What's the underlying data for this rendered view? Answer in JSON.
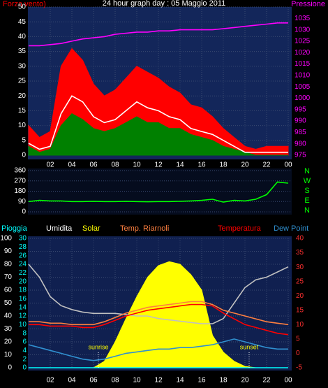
{
  "chart_data": [
    {
      "type": "line",
      "title": "24 hour graph day : 05 Maggio 2011",
      "ylabel": "Forza vento)",
      "y2label": "Pressione",
      "x": [
        0,
        1,
        2,
        3,
        4,
        5,
        6,
        7,
        8,
        9,
        10,
        11,
        12,
        13,
        14,
        15,
        16,
        17,
        18,
        19,
        20,
        21,
        22,
        23,
        24
      ],
      "xlim": [
        0,
        24
      ],
      "xticks": [
        {
          "value": 2,
          "label": "02"
        },
        {
          "value": 4,
          "label": "04"
        },
        {
          "value": 6,
          "label": "06"
        },
        {
          "value": 8,
          "label": "08"
        },
        10,
        12,
        14,
        16,
        18,
        20,
        22,
        {
          "value": 24,
          "label": "00"
        }
      ],
      "ylim": [
        0,
        50
      ],
      "yticks": [
        0,
        5,
        10,
        15,
        20,
        25,
        30,
        35,
        40,
        45,
        50
      ],
      "y2lim": [
        975,
        1040
      ],
      "y2ticks": [
        975,
        980,
        985,
        990,
        995,
        1000,
        1005,
        1010,
        1015,
        1020,
        1025,
        1030,
        1035
      ],
      "grid": true,
      "series": [
        {
          "color": "#ff0000",
          "fill": true,
          "values": [
            10,
            6,
            8,
            30,
            36,
            32,
            24,
            20,
            22,
            26,
            30,
            28,
            26,
            23,
            21,
            17,
            16,
            13,
            9,
            6,
            3,
            2,
            3,
            3,
            3
          ]
        },
        {
          "color": "#008000",
          "fill": true,
          "values": [
            3,
            1,
            2,
            10,
            14,
            12,
            9,
            8,
            9,
            11,
            13,
            11,
            11,
            9,
            9,
            7,
            6,
            5,
            3,
            2,
            1,
            0,
            0,
            0,
            0
          ]
        },
        {
          "color": "#ffffff",
          "fill": false,
          "values": [
            4,
            2,
            3,
            14,
            20,
            18,
            13,
            11,
            12,
            15,
            18,
            16,
            15,
            13,
            12,
            9,
            8,
            7,
            5,
            3,
            1,
            1,
            1,
            1,
            1
          ]
        },
        {
          "color": "#ff00ff",
          "fill": false,
          "axis": "y2",
          "values": [
            1023,
            1023,
            1023.5,
            1024,
            1025,
            1026,
            1026.5,
            1027,
            1028,
            1028.5,
            1029,
            1029,
            1029.5,
            1029.5,
            1030,
            1030,
            1030,
            1030,
            1030.5,
            1031,
            1031.5,
            1032,
            1032.5,
            1033,
            1033
          ]
        }
      ]
    },
    {
      "type": "line",
      "direction_labels": [
        "N",
        "W",
        "S",
        "E",
        "N"
      ],
      "x": [
        0,
        1,
        2,
        3,
        4,
        5,
        6,
        7,
        8,
        9,
        10,
        11,
        12,
        13,
        14,
        15,
        16,
        17,
        18,
        19,
        20,
        21,
        22,
        23,
        24
      ],
      "xlim": [
        0,
        24
      ],
      "ylim": [
        0,
        360
      ],
      "yticks": [
        0,
        90,
        180,
        270,
        360
      ],
      "grid": true,
      "series": [
        {
          "color": "#00ff00",
          "fill": false,
          "values": [
            90,
            100,
            95,
            95,
            90,
            90,
            92,
            90,
            90,
            92,
            90,
            88,
            90,
            90,
            92,
            95,
            100,
            110,
            85,
            100,
            95,
            110,
            150,
            260,
            250
          ]
        }
      ]
    },
    {
      "type": "line",
      "annotations": [
        "sunrise",
        "sunset"
      ],
      "x": [
        0,
        1,
        2,
        3,
        4,
        5,
        6,
        7,
        8,
        9,
        10,
        11,
        12,
        13,
        14,
        15,
        16,
        17,
        18,
        19,
        20,
        21,
        22,
        23,
        24
      ],
      "xlim": [
        0,
        24
      ],
      "xticks": [
        {
          "value": 2,
          "label": "02"
        },
        {
          "value": 4,
          "label": "04"
        },
        {
          "value": 6,
          "label": "06"
        },
        {
          "value": 8,
          "label": "08"
        },
        10,
        12,
        14,
        16,
        18,
        20,
        22,
        {
          "value": 24,
          "label": "00"
        }
      ],
      "ylim": [
        0,
        100
      ],
      "yticks": [
        0,
        10,
        20,
        30,
        40,
        50,
        60,
        70,
        80,
        90,
        100
      ],
      "y3lim": [
        0,
        30
      ],
      "y3ticks": [
        0,
        2,
        4,
        6,
        8,
        10,
        12,
        14,
        16,
        18,
        20,
        22,
        24,
        26,
        28,
        30
      ],
      "y2lim": [
        -5,
        40
      ],
      "y2ticks": [
        -5,
        0,
        5,
        10,
        15,
        20,
        25,
        30,
        35,
        40
      ],
      "grid": true,
      "series": [
        {
          "name": "Solar",
          "color": "#ffff00",
          "fill": true,
          "values": [
            0,
            0,
            0,
            0,
            0,
            0,
            0,
            5,
            20,
            38,
            55,
            70,
            79,
            82,
            80,
            72,
            60,
            25,
            12,
            5,
            1,
            0,
            0,
            0,
            0
          ]
        },
        {
          "name": "Umidita",
          "color": "#c0c0c0",
          "fill": false,
          "values": [
            80,
            70,
            55,
            48,
            45,
            43,
            42,
            42,
            42,
            41,
            40,
            40,
            38,
            37,
            36,
            35,
            34,
            34,
            38,
            50,
            62,
            68,
            70,
            74,
            78
          ]
        },
        {
          "name": "Temp. Riarnoli",
          "color": "#ff8040",
          "fill": false,
          "axis": "y2",
          "values": [
            11,
            11,
            10.5,
            10.5,
            10,
            10,
            10,
            11,
            12.5,
            14,
            15,
            16,
            16.5,
            17,
            17.5,
            18,
            18,
            17,
            15,
            14,
            13,
            12,
            11,
            10.5,
            10
          ]
        },
        {
          "name": "Temperatura",
          "color": "#ff0000",
          "fill": false,
          "axis": "y2",
          "values": [
            10,
            10,
            9.5,
            9.5,
            9.5,
            9,
            9,
            10,
            11.5,
            13,
            14,
            15,
            15.5,
            16,
            16.5,
            17,
            17,
            16.5,
            14,
            12,
            10,
            9,
            8,
            7,
            6.5
          ]
        },
        {
          "name": "Dew Point",
          "color": "#3090d0",
          "fill": false,
          "axis": "y2",
          "values": [
            3,
            2,
            1,
            0,
            -1,
            -2,
            -2.5,
            -2,
            -1,
            0,
            0.5,
            1,
            1.5,
            1.5,
            2,
            2,
            2.5,
            3,
            4,
            5,
            4,
            3,
            2,
            1.5,
            1.5
          ]
        },
        {
          "name": "Pioggia",
          "color": "#00ffff",
          "fill": false,
          "axis": "y3",
          "values": [
            0,
            0,
            0,
            0,
            0,
            0,
            0,
            0,
            0,
            0,
            0,
            0,
            0,
            0,
            0,
            0,
            0,
            0,
            0,
            0,
            0,
            0,
            0,
            0,
            0
          ]
        }
      ]
    }
  ]
}
